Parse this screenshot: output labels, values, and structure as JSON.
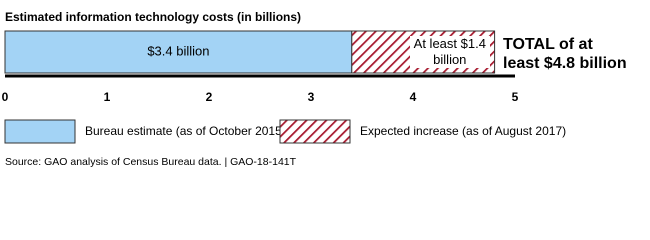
{
  "chart_data": {
    "type": "stacked-bar-horizontal",
    "title": "Estimated information technology costs (in billions)",
    "series": [
      {
        "name": "Bureau estimate (as of October 2015)",
        "color": "#a3d3f5",
        "pattern": "solid",
        "values": [
          3.4
        ],
        "value_labels": [
          "$3.4 billion"
        ]
      },
      {
        "name": "Expected increase (as of August 2017)",
        "color": "#a6192e",
        "pattern": "hatch",
        "values": [
          1.4
        ],
        "value_labels": [
          "At least $1.4 billion"
        ]
      }
    ],
    "total_label": "TOTAL of at least $4.8 billion",
    "xlim": [
      0,
      5
    ],
    "xticks": [
      0,
      1,
      2,
      3,
      4,
      5
    ],
    "source": "Source: GAO analysis of Census Bureau data.  |  GAO-18-141T"
  }
}
